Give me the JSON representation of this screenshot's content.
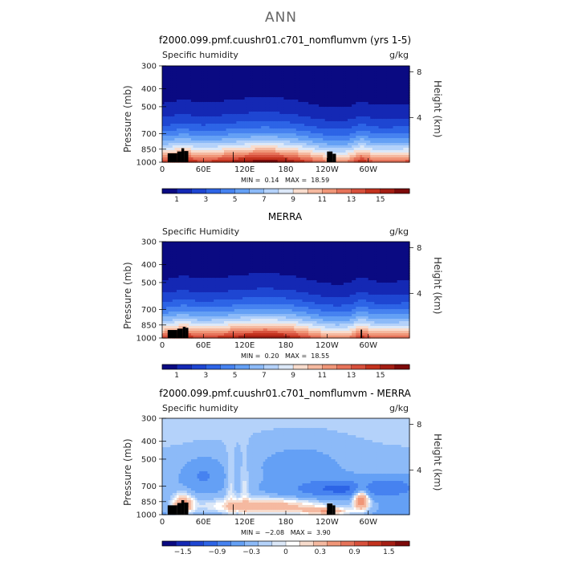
{
  "figure_title": "ANN",
  "panels": [
    {
      "title": "f2000.099.pmf.cuushr01.c701_nomflumvm (yrs 1-5)",
      "left_label": "Specific humidity",
      "units": "g/kg",
      "y_axis_label": "Pressure (mb)",
      "y2_axis_label": "Height (km)",
      "min_label": "MIN =",
      "min_value": "0.14",
      "max_label": "MAX =",
      "max_value": "18.59",
      "colorbar_labels": [
        "1",
        "3",
        "5",
        "7",
        "9",
        "11",
        "13",
        "15"
      ],
      "kind": "model"
    },
    {
      "title": "MERRA",
      "left_label": "Specific Humidity",
      "units": "g/kg",
      "y_axis_label": "Pressure (mb)",
      "y2_axis_label": "Height (km)",
      "min_label": "MIN =",
      "min_value": "0.20",
      "max_label": "MAX =",
      "max_value": "18.55",
      "colorbar_labels": [
        "1",
        "3",
        "5",
        "7",
        "9",
        "11",
        "13",
        "15"
      ],
      "kind": "obs"
    },
    {
      "title": "f2000.099.pmf.cuushr01.c701_nomflumvm - MERRA",
      "left_label": "Specific humidity",
      "units": "g/kg",
      "y_axis_label": "Pressure (mb)",
      "y2_axis_label": "Height (km)",
      "min_label": "MIN =",
      "min_value": "−2.08",
      "max_label": "MAX =",
      "max_value": "3.90",
      "colorbar_labels": [
        "−1.5",
        "−0.9",
        "−0.3",
        "0",
        "0.3",
        "0.9",
        "1.5"
      ],
      "kind": "diff"
    }
  ],
  "colors": {
    "full_levels": [
      "#0a0a82",
      "#1428b4",
      "#1e46d2",
      "#2d64e6",
      "#4682f0",
      "#64a0f5",
      "#8cbaf8",
      "#b4d2fa",
      "#dce8f8",
      "#f8dccd",
      "#f5b9a0",
      "#f09678",
      "#e6735a",
      "#d7503c",
      "#c3321e",
      "#a51e14",
      "#7d0a0a"
    ],
    "diff_levels": [
      "#0a0a82",
      "#1428b4",
      "#1e46d2",
      "#2d64e6",
      "#4682f0",
      "#64a0f5",
      "#8cbaf8",
      "#b4d2fa",
      "#dce8f8",
      "#ffffff",
      "#f8dccd",
      "#f5b9a0",
      "#f09678",
      "#e6735a",
      "#d7503c",
      "#c3321e",
      "#a51e14",
      "#7d0a0a"
    ],
    "topography": "#000000"
  },
  "chart_data": [
    {
      "type": "heatmap",
      "title": "f2000.099.pmf.cuushr01.c701_nomflumvm (yrs 1-5)",
      "variable": "Specific humidity",
      "units": "g/kg",
      "xlabel": "",
      "ylabel": "Pressure (mb)",
      "y2label": "Height (km)",
      "x_ticks": [
        "0",
        "60E",
        "120E",
        "180",
        "120W",
        "60W"
      ],
      "y_ticks": [
        300,
        400,
        500,
        700,
        850,
        1000
      ],
      "y2_ticks": [
        8,
        4
      ],
      "ylim": [
        1000,
        300
      ],
      "colorbar_levels": [
        1,
        3,
        5,
        7,
        9,
        11,
        13,
        15
      ],
      "min": 0.14,
      "max": 18.59
    },
    {
      "type": "heatmap",
      "title": "MERRA",
      "variable": "Specific Humidity",
      "units": "g/kg",
      "xlabel": "",
      "ylabel": "Pressure (mb)",
      "y2label": "Height (km)",
      "x_ticks": [
        "0",
        "60E",
        "120E",
        "180",
        "120W",
        "60W"
      ],
      "y_ticks": [
        300,
        400,
        500,
        700,
        850,
        1000
      ],
      "y2_ticks": [
        8,
        4
      ],
      "ylim": [
        1000,
        300
      ],
      "colorbar_levels": [
        1,
        3,
        5,
        7,
        9,
        11,
        13,
        15
      ],
      "min": 0.2,
      "max": 18.55
    },
    {
      "type": "heatmap",
      "title": "f2000.099.pmf.cuushr01.c701_nomflumvm - MERRA",
      "variable": "Specific humidity",
      "units": "g/kg",
      "xlabel": "",
      "ylabel": "Pressure (mb)",
      "y2label": "Height (km)",
      "x_ticks": [
        "0",
        "60E",
        "120E",
        "180",
        "120W",
        "60W"
      ],
      "y_ticks": [
        300,
        400,
        500,
        700,
        850,
        1000
      ],
      "y2_ticks": [
        8,
        4
      ],
      "ylim": [
        1000,
        300
      ],
      "colorbar_levels": [
        -1.5,
        -0.9,
        -0.3,
        0,
        0.3,
        0.9,
        1.5
      ],
      "min": -2.08,
      "max": 3.9
    }
  ]
}
